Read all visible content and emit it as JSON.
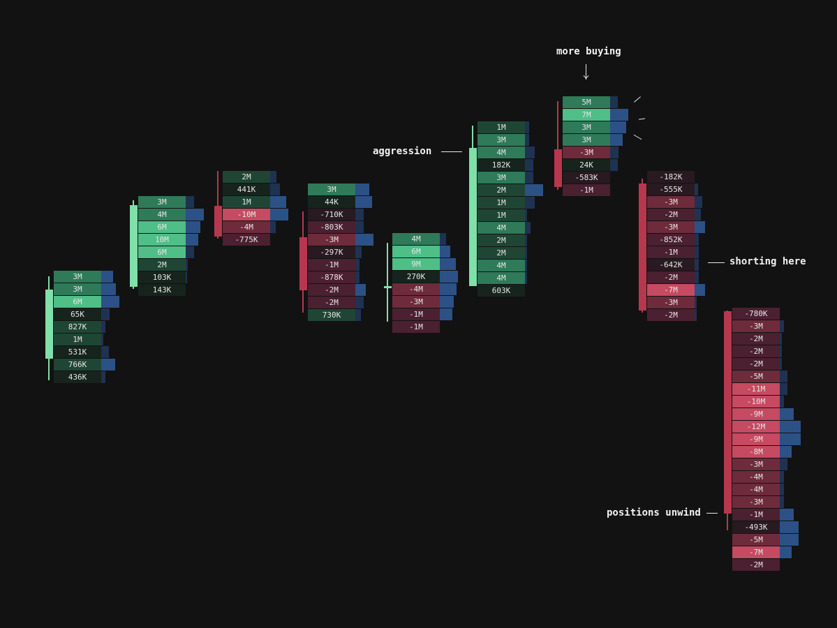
{
  "colors": {
    "background": "#121212",
    "buy_strong": "#4fbe87",
    "buy_mid": "#2f7a59",
    "buy_weak": "#1f4634",
    "buy_faint": "#16241d",
    "sell_strong": "#c64a61",
    "sell_mid": "#6e2b3b",
    "sell_weak": "#4b2030",
    "sell_faint": "#281a20",
    "volume_bar": "#2c5186",
    "volume_bar_dim": "#1f3252",
    "candle_up": "#7fe0aa",
    "candle_down": "#b7384e"
  },
  "annotations": {
    "more_buying": "more buying",
    "aggression": "aggression",
    "shorting_here": "shorting here",
    "positions_unwind": "positions unwind"
  },
  "chart_data": {
    "type": "footprint",
    "title": "",
    "xlabel": "",
    "ylabel": "",
    "grid": false,
    "candles": [
      {
        "direction": "up",
        "rows": [
          {
            "label": "3M",
            "delta": 3,
            "volume": 0.55
          },
          {
            "label": "3M",
            "delta": 3,
            "volume": 0.7
          },
          {
            "label": "6M",
            "delta": 6,
            "volume": 0.85
          },
          {
            "label": "65K",
            "delta": 0.065,
            "volume": 0.4
          },
          {
            "label": "827K",
            "delta": 0.827,
            "volume": 0.2
          },
          {
            "label": "1M",
            "delta": 1,
            "volume": 0.1
          },
          {
            "label": "531K",
            "delta": 0.531,
            "volume": 0.35
          },
          {
            "label": "766K",
            "delta": 0.766,
            "volume": 0.65
          },
          {
            "label": "436K",
            "delta": 0.436,
            "volume": 0.2
          }
        ]
      },
      {
        "direction": "up",
        "rows": [
          {
            "label": "3M",
            "delta": 3,
            "volume": 0.4
          },
          {
            "label": "4M",
            "delta": 4,
            "volume": 0.85
          },
          {
            "label": "6M",
            "delta": 6,
            "volume": 0.7
          },
          {
            "label": "10M",
            "delta": 10,
            "volume": 0.6
          },
          {
            "label": "6M",
            "delta": 6,
            "volume": 0.4
          },
          {
            "label": "2M",
            "delta": 2,
            "volume": 0.1
          },
          {
            "label": "103K",
            "delta": 0.103,
            "volume": 0.05
          },
          {
            "label": "143K",
            "delta": 0.143,
            "volume": 0
          }
        ]
      },
      {
        "direction": "down",
        "rows": [
          {
            "label": "2M",
            "delta": 2,
            "volume": 0.3
          },
          {
            "label": "441K",
            "delta": 0.441,
            "volume": 0.45
          },
          {
            "label": "1M",
            "delta": 1,
            "volume": 0.75
          },
          {
            "label": "-10M",
            "delta": -10,
            "volume": 0.85
          },
          {
            "label": "-4M",
            "delta": -4,
            "volume": 0.25
          },
          {
            "label": "-775K",
            "delta": -0.775,
            "volume": 0
          }
        ]
      },
      {
        "direction": "down",
        "rows": [
          {
            "label": "3M",
            "delta": 3,
            "volume": 0.65
          },
          {
            "label": "44K",
            "delta": 0.044,
            "volume": 0.8
          },
          {
            "label": "-710K",
            "delta": -0.71,
            "volume": 0.4
          },
          {
            "label": "-803K",
            "delta": -0.803,
            "volume": 0.4
          },
          {
            "label": "-3M",
            "delta": -3,
            "volume": 0.85
          },
          {
            "label": "-297K",
            "delta": -0.297,
            "volume": 0.3
          },
          {
            "label": "-1M",
            "delta": -1,
            "volume": 0.2
          },
          {
            "label": "-878K",
            "delta": -0.878,
            "volume": 0.2
          },
          {
            "label": "-2M",
            "delta": -2,
            "volume": 0.5
          },
          {
            "label": "-2M",
            "delta": -2,
            "volume": 0.4
          },
          {
            "label": "730K",
            "delta": 0.73,
            "volume": 0.25
          }
        ]
      },
      {
        "direction": "up",
        "rows": [
          {
            "label": "4M",
            "delta": 4,
            "volume": 0.3
          },
          {
            "label": "6M",
            "delta": 6,
            "volume": 0.5
          },
          {
            "label": "9M",
            "delta": 9,
            "volume": 0.75
          },
          {
            "label": "270K",
            "delta": 0.27,
            "volume": 0.85
          },
          {
            "label": "-4M",
            "delta": -4,
            "volume": 0.8
          },
          {
            "label": "-3M",
            "delta": -3,
            "volume": 0.65
          },
          {
            "label": "-1M",
            "delta": -1,
            "volume": 0.6
          },
          {
            "label": "-1M",
            "delta": -1,
            "volume": 0
          }
        ]
      },
      {
        "direction": "up",
        "rows": [
          {
            "label": "1M",
            "delta": 1,
            "volume": 0.2
          },
          {
            "label": "3M",
            "delta": 3,
            "volume": 0.2
          },
          {
            "label": "4M",
            "delta": 4,
            "volume": 0.45
          },
          {
            "label": "182K",
            "delta": 0.182,
            "volume": 0.4
          },
          {
            "label": "3M",
            "delta": 3,
            "volume": 0.4
          },
          {
            "label": "2M",
            "delta": 2,
            "volume": 0.85
          },
          {
            "label": "1M",
            "delta": 1,
            "volume": 0.45
          },
          {
            "label": "1M",
            "delta": 1,
            "volume": 0.1
          },
          {
            "label": "4M",
            "delta": 4,
            "volume": 0.25
          },
          {
            "label": "2M",
            "delta": 2,
            "volume": 0.1
          },
          {
            "label": "2M",
            "delta": 2,
            "volume": 0.1
          },
          {
            "label": "4M",
            "delta": 4,
            "volume": 0.1
          },
          {
            "label": "4M",
            "delta": 4,
            "volume": 0.1
          },
          {
            "label": "603K",
            "delta": 0.603,
            "volume": 0
          }
        ]
      },
      {
        "direction": "down",
        "rows": [
          {
            "label": "5M",
            "delta": 5,
            "volume": 0.35
          },
          {
            "label": "7M",
            "delta": 7,
            "volume": 0.85
          },
          {
            "label": "3M",
            "delta": 3,
            "volume": 0.75
          },
          {
            "label": "3M",
            "delta": 3,
            "volume": 0.6
          },
          {
            "label": "-3M",
            "delta": -3,
            "volume": 0.4
          },
          {
            "label": "24K",
            "delta": 0.024,
            "volume": 0.35
          },
          {
            "label": "-583K",
            "delta": -0.583,
            "volume": 0
          },
          {
            "label": "-1M",
            "delta": -1,
            "volume": 0
          }
        ]
      },
      {
        "direction": "down",
        "rows": [
          {
            "label": "-182K",
            "delta": -0.182,
            "volume": 0
          },
          {
            "label": "-555K",
            "delta": -0.555,
            "volume": 0.15
          },
          {
            "label": "-3M",
            "delta": -3,
            "volume": 0.35
          },
          {
            "label": "-2M",
            "delta": -2,
            "volume": 0.3
          },
          {
            "label": "-3M",
            "delta": -3,
            "volume": 0.5
          },
          {
            "label": "-852K",
            "delta": -0.852,
            "volume": 0.2
          },
          {
            "label": "-1M",
            "delta": -1,
            "volume": 0.2
          },
          {
            "label": "-642K",
            "delta": -0.642,
            "volume": 0.2
          },
          {
            "label": "-2M",
            "delta": -2,
            "volume": 0.2
          },
          {
            "label": "-7M",
            "delta": -7,
            "volume": 0.5
          },
          {
            "label": "-3M",
            "delta": -3,
            "volume": 0.1
          },
          {
            "label": "-2M",
            "delta": -2,
            "volume": 0.1
          }
        ]
      },
      {
        "direction": "down",
        "rows": [
          {
            "label": "-780K",
            "delta": -0.78,
            "volume": 0
          },
          {
            "label": "-3M",
            "delta": -3,
            "volume": 0.2
          },
          {
            "label": "-2M",
            "delta": -2,
            "volume": 0.1
          },
          {
            "label": "-2M",
            "delta": -2,
            "volume": 0.1
          },
          {
            "label": "-2M",
            "delta": -2,
            "volume": 0.1
          },
          {
            "label": "-5M",
            "delta": -5,
            "volume": 0.35
          },
          {
            "label": "-11M",
            "delta": -11,
            "volume": 0.35
          },
          {
            "label": "-10M",
            "delta": -10,
            "volume": 0.2
          },
          {
            "label": "-9M",
            "delta": -9,
            "volume": 0.65
          },
          {
            "label": "-12M",
            "delta": -12,
            "volume": 1.0
          },
          {
            "label": "-9M",
            "delta": -9,
            "volume": 1.0
          },
          {
            "label": "-8M",
            "delta": -8,
            "volume": 0.55
          },
          {
            "label": "-3M",
            "delta": -3,
            "volume": 0.35
          },
          {
            "label": "-4M",
            "delta": -4,
            "volume": 0.2
          },
          {
            "label": "-4M",
            "delta": -4,
            "volume": 0.2
          },
          {
            "label": "-3M",
            "delta": -3,
            "volume": 0.2
          },
          {
            "label": "-1M",
            "delta": -1,
            "volume": 0.65
          },
          {
            "label": "-493K",
            "delta": -0.493,
            "volume": 0.9
          },
          {
            "label": "-5M",
            "delta": -5,
            "volume": 0.9
          },
          {
            "label": "-7M",
            "delta": -7,
            "volume": 0.55
          },
          {
            "label": "-2M",
            "delta": -2,
            "volume": 0
          }
        ]
      }
    ]
  }
}
